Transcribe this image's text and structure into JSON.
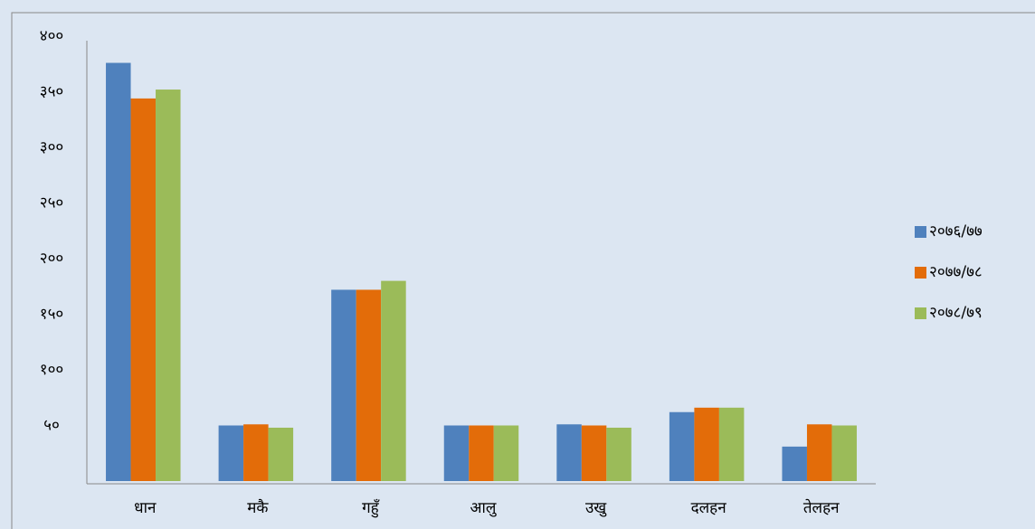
{
  "chart_data": {
    "type": "bar",
    "categories": [
      "धान",
      "मकै",
      "गहुँ",
      "आलु",
      "उखु",
      "दलहन",
      "तेलहन"
    ],
    "series": [
      {
        "name": "२०७६/७७",
        "color": "#4f81bd",
        "values": [
          376,
          50,
          172,
          50,
          51,
          62,
          31
        ]
      },
      {
        "name": "२०७७/७८",
        "color": "#e36c09",
        "values": [
          344,
          51,
          172,
          50,
          50,
          66,
          51
        ]
      },
      {
        "name": "२०७८/७९",
        "color": "#9bbb59",
        "values": [
          352,
          48,
          180,
          50,
          48,
          66,
          50
        ]
      }
    ],
    "ylim": [
      0,
      400
    ],
    "yticks": [
      {
        "value": 50,
        "label": "५०"
      },
      {
        "value": 100,
        "label": "१००"
      },
      {
        "value": 150,
        "label": "१५०"
      },
      {
        "value": 200,
        "label": "२००"
      },
      {
        "value": 250,
        "label": "२५०"
      },
      {
        "value": 300,
        "label": "३००"
      },
      {
        "value": 350,
        "label": "३५०"
      },
      {
        "value": 400,
        "label": "४००"
      }
    ],
    "grid": false,
    "legend": "right"
  }
}
